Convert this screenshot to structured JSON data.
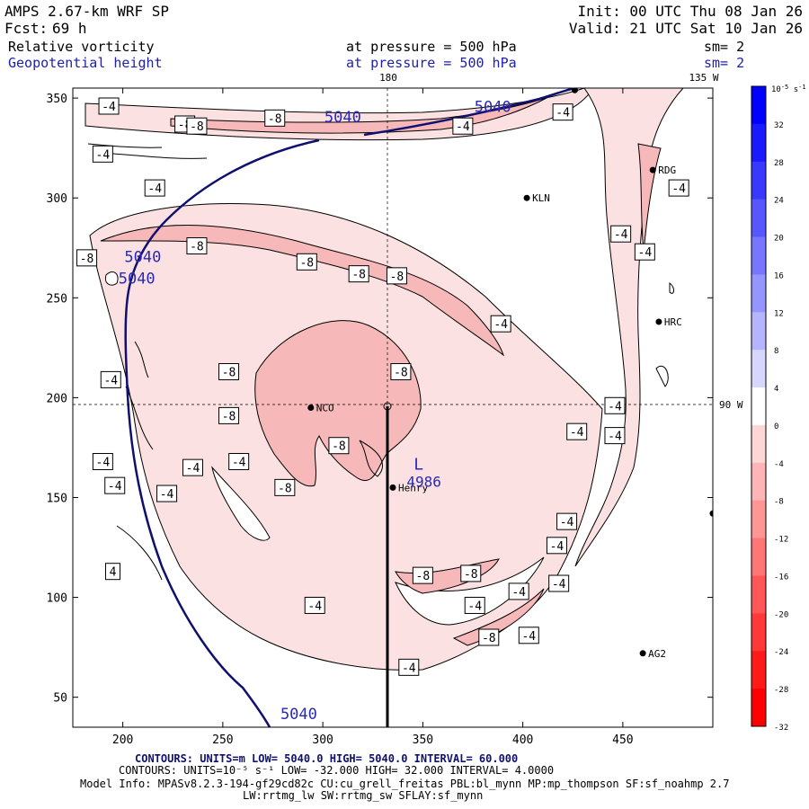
{
  "header": {
    "model": "AMPS 2.67-km WRF SP",
    "init": "Init: 00 UTC Thu 08 Jan 26",
    "forecast_label": "Fcst:",
    "forecast_value": "69 h",
    "valid": "Valid: 21 UTC Sat 10 Jan 26"
  },
  "fields": [
    {
      "name": "Relative vorticity",
      "pressure": "at pressure =  500 hPa",
      "smooth": "sm= 2",
      "color": "#000000"
    },
    {
      "name": "Geopotential height",
      "pressure": "at pressure =  500 hPa",
      "smooth": "sm= 2",
      "color": "#2020b0"
    }
  ],
  "map_labels": {
    "lon_180": "180",
    "lon_135w": "135 W",
    "lon_90w": "90 W"
  },
  "stations": [
    {
      "name": "KLN",
      "x": 402,
      "y": 300
    },
    {
      "name": "RDG",
      "x": 465,
      "y": 314
    },
    {
      "name": "HRC",
      "x": 468,
      "y": 238
    },
    {
      "name": "NCO",
      "x": 294,
      "y": 195
    },
    {
      "name": "Henry",
      "x": 335,
      "y": 155
    },
    {
      "name": "AG2",
      "x": 460,
      "y": 72
    },
    {
      "name": "",
      "x": 426,
      "y": 354
    },
    {
      "name": "",
      "x": 495,
      "y": 142
    }
  ],
  "low_center": {
    "label": "L",
    "value": "4986",
    "x": 338,
    "y": 172
  },
  "height_labels": [
    {
      "text": "5040",
      "x": 310,
      "y": 338
    },
    {
      "text": "5040",
      "x": 385,
      "y": 343
    },
    {
      "text": "5040",
      "x": 210,
      "y": 268
    },
    {
      "text": "5040",
      "x": 207,
      "y": 257
    },
    {
      "text": "5040",
      "x": 288,
      "y": 39
    }
  ],
  "vort_labels": [
    {
      "text": "-4",
      "x": 193,
      "y": 346
    },
    {
      "text": "-4",
      "x": 190,
      "y": 322
    },
    {
      "text": "-4",
      "x": 216,
      "y": 305
    },
    {
      "text": "-8",
      "x": 231,
      "y": 337
    },
    {
      "text": "-8",
      "x": 237,
      "y": 336
    },
    {
      "text": "-8",
      "x": 276,
      "y": 340
    },
    {
      "text": "-4",
      "x": 370,
      "y": 336
    },
    {
      "text": "-4",
      "x": 420,
      "y": 343
    },
    {
      "text": "-8",
      "x": 182,
      "y": 270
    },
    {
      "text": "-8",
      "x": 237,
      "y": 276
    },
    {
      "text": "-8",
      "x": 292,
      "y": 268
    },
    {
      "text": "-8",
      "x": 318,
      "y": 262
    },
    {
      "text": "-8",
      "x": 337,
      "y": 261
    },
    {
      "text": "-4",
      "x": 449,
      "y": 282
    },
    {
      "text": "-4",
      "x": 461,
      "y": 273
    },
    {
      "text": "-4",
      "x": 478,
      "y": 305
    },
    {
      "text": "-4",
      "x": 389,
      "y": 237
    },
    {
      "text": "-4",
      "x": 194,
      "y": 209
    },
    {
      "text": "-8",
      "x": 253,
      "y": 213
    },
    {
      "text": "-8",
      "x": 339,
      "y": 213
    },
    {
      "text": "-8",
      "x": 253,
      "y": 191
    },
    {
      "text": "-4",
      "x": 446,
      "y": 196
    },
    {
      "text": "-4",
      "x": 427,
      "y": 183
    },
    {
      "text": "-4",
      "x": 446,
      "y": 181
    },
    {
      "text": "-8",
      "x": 308,
      "y": 176
    },
    {
      "text": "-4",
      "x": 190,
      "y": 168
    },
    {
      "text": "-4",
      "x": 235,
      "y": 165
    },
    {
      "text": "-4",
      "x": 258,
      "y": 168
    },
    {
      "text": "-4",
      "x": 196,
      "y": 156
    },
    {
      "text": "-4",
      "x": 222,
      "y": 152
    },
    {
      "text": "-8",
      "x": 281,
      "y": 155
    },
    {
      "text": "-4",
      "x": 422,
      "y": 138
    },
    {
      "text": "4",
      "x": 195,
      "y": 113
    },
    {
      "text": "-4",
      "x": 417,
      "y": 126
    },
    {
      "text": "-8",
      "x": 350,
      "y": 111
    },
    {
      "text": "-8",
      "x": 374,
      "y": 112
    },
    {
      "text": "-4",
      "x": 398,
      "y": 103
    },
    {
      "text": "-4",
      "x": 418,
      "y": 107
    },
    {
      "text": "-4",
      "x": 296,
      "y": 96
    },
    {
      "text": "-4",
      "x": 376,
      "y": 96
    },
    {
      "text": "-8",
      "x": 383,
      "y": 80
    },
    {
      "text": "-4",
      "x": 403,
      "y": 81
    },
    {
      "text": "-4",
      "x": 343,
      "y": 65
    }
  ],
  "chart_data": {
    "type": "contour",
    "xlim": [
      175,
      495
    ],
    "ylim": [
      35,
      355
    ],
    "xticks": [
      200,
      250,
      300,
      350,
      400,
      450
    ],
    "yticks": [
      50,
      100,
      150,
      200,
      250,
      300,
      350
    ],
    "crosshair": {
      "x": 333,
      "y": 195
    },
    "colorbar": {
      "units": "10-5 s-1",
      "ticks": [
        "32",
        "28",
        "24",
        "20",
        "16",
        "12",
        "8",
        "4",
        "0",
        "-4",
        "-8",
        "-12",
        "-16",
        "-20",
        "-24",
        "-28",
        "-32"
      ],
      "colors": [
        "#0000ff",
        "#1a1aff",
        "#3838ff",
        "#5757ff",
        "#7676ff",
        "#9595ff",
        "#b5b5ff",
        "#d6d6ff",
        "#ffffff",
        "#ffd6d6",
        "#ffb5b5",
        "#ff9595",
        "#ff7676",
        "#ff5757",
        "#ff3838",
        "#ff1a1a",
        "#ff0000"
      ]
    },
    "height_contours": {
      "units": "m",
      "low": "5040.0",
      "high": "5040.0",
      "interval": "60.000"
    },
    "vorticity_contours": {
      "units": "10-5 s-1",
      "low": "-32.000",
      "high": "32.000",
      "interval": "4.0000"
    }
  },
  "footer": {
    "line1": "CONTOURS:  UNITS=m  LOW=   5040.0      HIGH=  5040.0      INTERVAL=   60.000",
    "line2": "CONTOURS:  UNITS=10⁻⁵ s⁻¹  LOW= -32.000        HIGH=  32.000       INTERVAL=   4.0000",
    "line3": "Model Info: MPASv8.2.3-194-gf29cd82c CU:cu_grell_freitas PBL:bl_mynn MP:mp_thompson SF:sf_noahmp 2.7",
    "line4": "LW:rrtmg_lw SW:rrtmg_sw SFLAY:sf_mynn"
  }
}
